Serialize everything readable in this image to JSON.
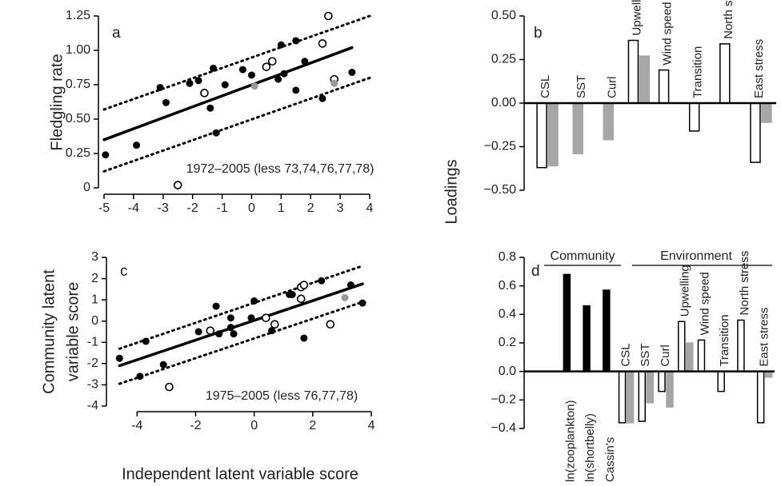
{
  "chart_data": [
    {
      "type": "scatter",
      "title": "a",
      "ylabel": [
        "Fledgling rate"
      ],
      "annotations": [
        "1972–2005 (less 73,74,76,77,78)"
      ],
      "xlim": [
        -5,
        4
      ],
      "xticks": [
        -5,
        -4,
        -3,
        -2,
        -1,
        0,
        1,
        2,
        3,
        4
      ],
      "ylim": [
        0,
        1.25
      ],
      "yticks": [
        0,
        0.25,
        {
          "value": 0.5,
          "label": "0.50"
        },
        0.75,
        {
          "value": 1,
          "label": "1.00"
        },
        1.25
      ],
      "series": [
        {
          "color": "#000000",
          "marker": "filled",
          "x": [
            -4.95,
            -3.9,
            -3.1,
            -2.9,
            -2.1,
            -1.8,
            -1.4,
            -1.2,
            -1.3,
            -0.9,
            -0.3,
            0.0,
            0.9,
            1.0,
            1.1,
            1.5,
            1.8,
            1.5,
            2.4,
            3.4
          ],
          "values": [
            0.24,
            0.31,
            0.73,
            0.62,
            0.76,
            0.78,
            0.58,
            0.4,
            0.87,
            0.75,
            0.86,
            0.82,
            0.79,
            1.04,
            0.83,
            0.71,
            0.92,
            1.07,
            0.65,
            0.84
          ]
        },
        {
          "color": "#000000",
          "marker": "open",
          "x": [
            -2.5,
            -1.6,
            0.5,
            0.7,
            2.4,
            2.6,
            2.8
          ],
          "values": [
            0.02,
            0.69,
            0.88,
            0.92,
            1.05,
            1.25,
            0.79
          ]
        },
        {
          "color": "#999999",
          "marker": "filled",
          "x": [
            0.1,
            2.8
          ],
          "values": [
            0.74,
            0.76
          ]
        },
        {
          "color": "#000000",
          "line_style": "solid",
          "x": [
            -5,
            3.4
          ],
          "values": [
            0.35,
            1.02
          ]
        },
        {
          "color": "#000000",
          "line_style": "dotted",
          "x": [
            -5,
            4
          ],
          "values": [
            0.57,
            1.25
          ]
        },
        {
          "color": "#000000",
          "line_style": "dotted",
          "x": [
            -5,
            4
          ],
          "values": [
            0.12,
            0.8
          ]
        }
      ]
    },
    {
      "type": "bar",
      "title": "b",
      "ylabel": [
        "Loadings"
      ],
      "categories": [
        "CSL",
        "SST",
        "Curl",
        "Upwelling",
        "Wind speed",
        "Transition",
        "North stress",
        "East stress"
      ],
      "ylim": [
        -0.5,
        0.5
      ],
      "yticks": [
        {
          "value": -0.5,
          "label": "−0.50"
        },
        {
          "value": -0.25,
          "label": "−0.25"
        },
        {
          "value": 0,
          "label": "0.00"
        },
        0.25,
        {
          "value": 0.5,
          "label": "0.50"
        }
      ],
      "series": [
        {
          "color": "#ffffff",
          "edgecolor": "#000000",
          "values": [
            -0.37,
            null,
            null,
            0.36,
            0.19,
            -0.16,
            0.34,
            -0.34
          ]
        },
        {
          "color": "#a6a6a6",
          "edgecolor": "#a6a6a6",
          "values": [
            -0.36,
            -0.29,
            -0.21,
            0.27,
            null,
            null,
            null,
            -0.11
          ]
        }
      ]
    },
    {
      "type": "scatter",
      "title": "c",
      "ylabel": [
        "Community latent",
        "variable score"
      ],
      "xlabel": "Independent latent variable score",
      "annotations": [
        "1975–2005 (less 76,77,78)"
      ],
      "xlim": [
        -4.8,
        4.3
      ],
      "xticks": [
        -4,
        -2,
        0,
        2,
        4
      ],
      "ylim": [
        -4,
        3
      ],
      "yticks": [
        -4,
        -3,
        -2,
        -1,
        0,
        1,
        2,
        3
      ],
      "series": [
        {
          "color": "#000000",
          "marker": "filled",
          "x": [
            -4.6,
            -3.9,
            -3.7,
            -3.1,
            -1.9,
            -1.3,
            -1.2,
            -0.8,
            -0.8,
            -0.7,
            -0.1,
            0.0,
            0.6,
            1.2,
            1.3,
            1.7,
            2.3,
            3.3,
            3.7
          ],
          "values": [
            -1.75,
            -2.6,
            -0.95,
            -2.05,
            -0.5,
            0.7,
            -0.6,
            0.15,
            -0.3,
            -0.6,
            0.15,
            0.95,
            -0.45,
            1.25,
            1.25,
            -0.8,
            1.9,
            1.7,
            0.85
          ]
        },
        {
          "color": "#000000",
          "marker": "open",
          "x": [
            -2.9,
            -1.5,
            0.4,
            0.7,
            1.6,
            1.6,
            1.7,
            2.6
          ],
          "values": [
            -3.1,
            -0.45,
            0.15,
            -0.15,
            1.05,
            1.6,
            1.7,
            -0.15
          ]
        },
        {
          "color": "#999999",
          "marker": "filled",
          "x": [
            3.1
          ],
          "values": [
            1.1
          ]
        },
        {
          "color": "#000000",
          "line_style": "solid",
          "x": [
            -4.6,
            3.7
          ],
          "values": [
            -2.1,
            1.75
          ]
        },
        {
          "color": "#000000",
          "line_style": "dotted",
          "x": [
            -4.6,
            3.7
          ],
          "values": [
            -1.3,
            2.6
          ]
        },
        {
          "color": "#000000",
          "line_style": "dotted",
          "x": [
            -4.6,
            3.7
          ],
          "values": [
            -2.95,
            0.9
          ]
        }
      ]
    },
    {
      "type": "bar",
      "title": "d",
      "annotations": [
        "Community",
        "Environment"
      ],
      "categories": [
        "ln(zooplankton)",
        "ln(shortbelly)",
        "Cassin's",
        "CSL",
        "SST",
        "Curl",
        "Upwelling",
        "Wind speed",
        "Transition",
        "North stress",
        "East stress"
      ],
      "ylim": [
        -0.4,
        0.8
      ],
      "yticks": [
        {
          "value": -0.4,
          "label": "−0.4"
        },
        {
          "value": -0.2,
          "label": "−0.2"
        },
        {
          "value": 0,
          "label": "0.0"
        },
        0.2,
        0.4,
        0.6,
        0.8
      ],
      "series": [
        {
          "color": "#000000",
          "edgecolor": "#000000",
          "values": [
            0.68,
            0.46,
            0.57,
            null,
            null,
            null,
            null,
            null,
            null,
            null,
            null
          ]
        },
        {
          "color": "#ffffff",
          "edgecolor": "#000000",
          "values": [
            null,
            null,
            null,
            -0.36,
            -0.35,
            -0.14,
            0.35,
            0.22,
            -0.14,
            0.36,
            -0.36
          ]
        },
        {
          "color": "#a6a6a6",
          "edgecolor": "#a6a6a6",
          "values": [
            null,
            null,
            null,
            -0.36,
            -0.22,
            -0.25,
            0.2,
            null,
            null,
            null,
            -0.04
          ]
        }
      ]
    }
  ]
}
